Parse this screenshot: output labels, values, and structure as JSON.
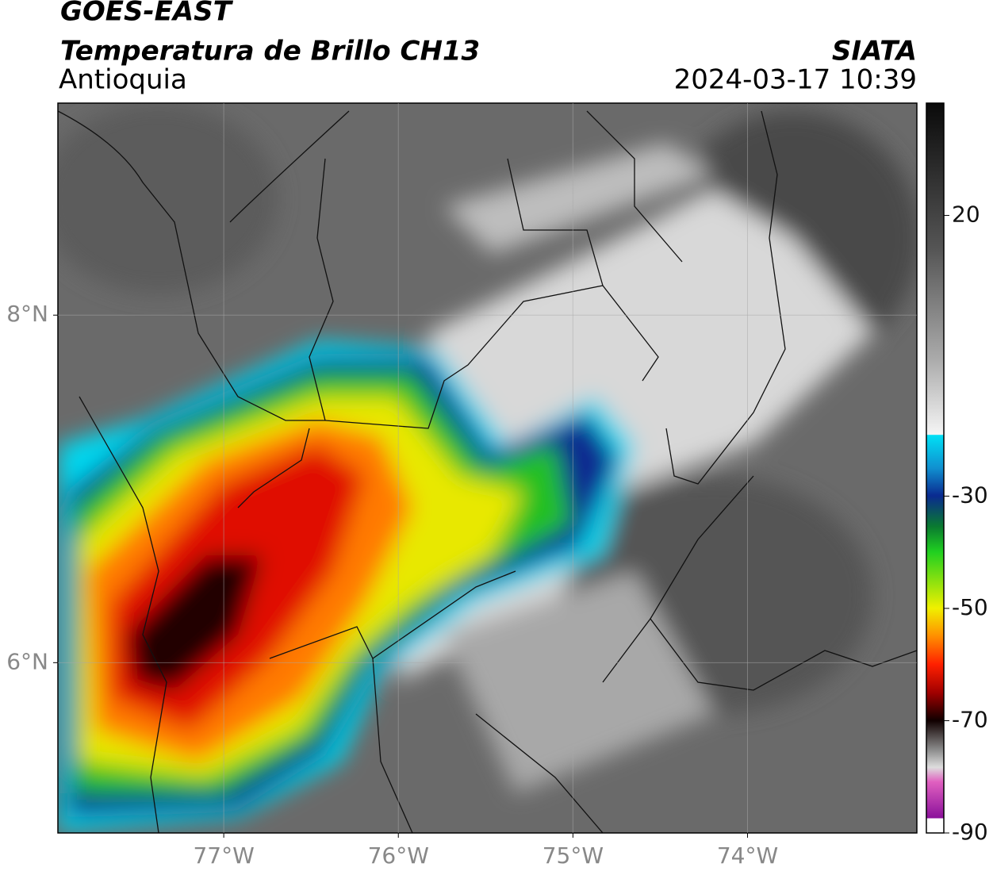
{
  "header": {
    "satellite": "GOES-EAST",
    "product": "Temperatura de Brillo CH13",
    "region": "Antioquia",
    "source": "SIATA",
    "datetime": "2024-03-17 10:39"
  },
  "map": {
    "xlim": [
      -77.95,
      -73.03
    ],
    "ylim": [
      5.02,
      9.22
    ],
    "xticks": [
      {
        "value": -77,
        "label": "77°W"
      },
      {
        "value": -76,
        "label": "76°W"
      },
      {
        "value": -75,
        "label": "75°W"
      },
      {
        "value": -74,
        "label": "74°W"
      }
    ],
    "yticks": [
      {
        "value": 8,
        "label": "8°N"
      },
      {
        "value": 6,
        "label": "6°N"
      }
    ]
  },
  "colorbar": {
    "lim": [
      -90,
      40
    ],
    "ticks": [
      20,
      -30,
      -50,
      -70,
      -90
    ]
  }
}
